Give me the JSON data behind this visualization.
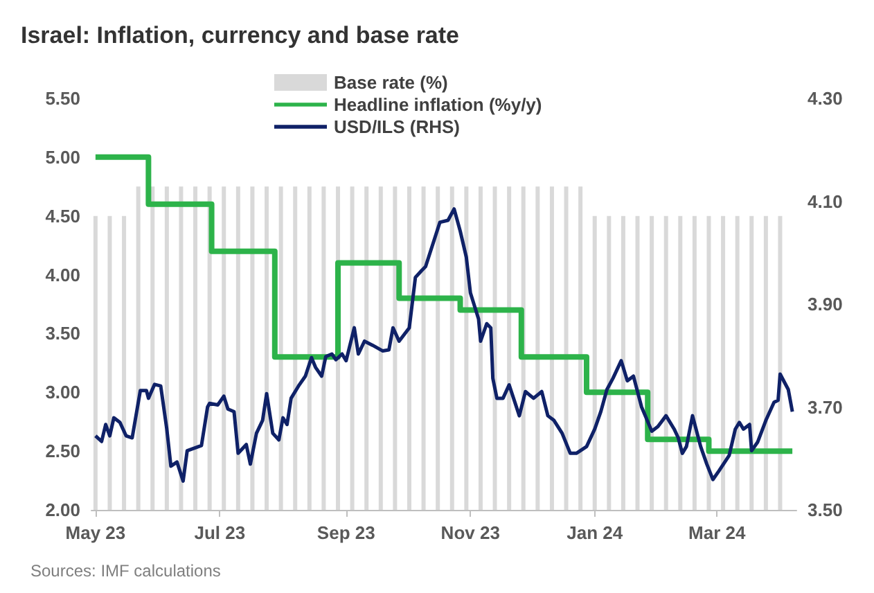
{
  "chart_data": {
    "type": "line",
    "title": "Israel: Inflation, currency and base rate",
    "annotations": [
      "Sources: IMF calculations"
    ],
    "xlim": [
      "2023-04-29",
      "2024-04-09"
    ],
    "xticks": [
      {
        "value": "2023-05-01",
        "label": "May 23"
      },
      {
        "value": "2023-07-01",
        "label": "Jul 23"
      },
      {
        "value": "2023-09-01",
        "label": "Sep 23"
      },
      {
        "value": "2023-11-01",
        "label": "Nov 23"
      },
      {
        "value": "2024-01-01",
        "label": "Jan 24"
      },
      {
        "value": "2024-03-01",
        "label": "Mar 24"
      }
    ],
    "ylim": [
      2,
      5.5
    ],
    "yticks": [
      {
        "value": 2,
        "label": "2.00"
      },
      {
        "value": 2.5,
        "label": "2.50"
      },
      {
        "value": 3,
        "label": "3.00"
      },
      {
        "value": 3.5,
        "label": "3.50"
      },
      {
        "value": 4,
        "label": "4.00"
      },
      {
        "value": 4.5,
        "label": "4.50"
      },
      {
        "value": 5,
        "label": "5.00"
      },
      {
        "value": 5.5,
        "label": "5.50"
      }
    ],
    "y2lim": [
      3.5,
      4.3
    ],
    "y2ticks": [
      {
        "value": 3.5,
        "label": "3.50"
      },
      {
        "value": 3.7,
        "label": "3.70"
      },
      {
        "value": 3.9,
        "label": "3.90"
      },
      {
        "value": 4.1,
        "label": "4.10"
      },
      {
        "value": 4.3,
        "label": "4.30"
      }
    ],
    "grid": false,
    "legend": "top",
    "marker": "none",
    "series": [
      {
        "name": "Base rate (%)",
        "type": "bar",
        "color": "#d9d9d9",
        "x": [
          "2023-05-01",
          "2023-05-08",
          "2023-05-15",
          "2023-05-22",
          "2023-05-29",
          "2023-06-05",
          "2023-06-12",
          "2023-06-19",
          "2023-06-26",
          "2023-07-03",
          "2023-07-10",
          "2023-07-17",
          "2023-07-24",
          "2023-07-31",
          "2023-08-07",
          "2023-08-14",
          "2023-08-21",
          "2023-08-28",
          "2023-09-04",
          "2023-09-11",
          "2023-09-18",
          "2023-09-25",
          "2023-10-02",
          "2023-10-09",
          "2023-10-16",
          "2023-10-23",
          "2023-10-30",
          "2023-11-06",
          "2023-11-13",
          "2023-11-20",
          "2023-11-27",
          "2023-12-04",
          "2023-12-11",
          "2023-12-18",
          "2023-12-25",
          "2024-01-01",
          "2024-01-08",
          "2024-01-15",
          "2024-01-22",
          "2024-01-29",
          "2024-02-05",
          "2024-02-12",
          "2024-02-19",
          "2024-02-26",
          "2024-03-04",
          "2024-03-11",
          "2024-03-18",
          "2024-03-25",
          "2024-04-01"
        ],
        "values": [
          4.5,
          4.5,
          4.5,
          4.75,
          4.75,
          4.75,
          4.75,
          4.75,
          4.75,
          4.75,
          4.75,
          4.75,
          4.75,
          4.75,
          4.75,
          4.75,
          4.75,
          4.75,
          4.75,
          4.75,
          4.75,
          4.75,
          4.75,
          4.75,
          4.75,
          4.75,
          4.75,
          4.75,
          4.75,
          4.75,
          4.75,
          4.75,
          4.75,
          4.75,
          4.75,
          4.5,
          4.5,
          4.5,
          4.5,
          4.5,
          4.5,
          4.5,
          4.5,
          4.5,
          4.5,
          4.5,
          4.5,
          4.5,
          4.5
        ]
      },
      {
        "name": "Headline inflation (%y/y)",
        "type": "step",
        "color": "#2db34a",
        "x": [
          "2023-05-01",
          "2023-05-27",
          "2023-06-27",
          "2023-07-28",
          "2023-08-28",
          "2023-09-27",
          "2023-10-27",
          "2023-11-26",
          "2023-12-28",
          "2024-01-27",
          "2024-02-26",
          "2024-04-07"
        ],
        "values": [
          5.0,
          4.6,
          4.2,
          3.3,
          4.1,
          3.8,
          3.7,
          3.3,
          3.0,
          2.6,
          2.5,
          2.5
        ]
      },
      {
        "name": "USD/ILS (RHS)",
        "axis": "y2",
        "color": "#0f2167",
        "x": [
          "2023-05-01",
          "2023-05-04",
          "2023-05-06",
          "2023-05-08",
          "2023-05-10",
          "2023-05-13",
          "2023-05-16",
          "2023-05-19",
          "2023-05-23",
          "2023-05-26",
          "2023-05-27",
          "2023-05-30",
          "2023-06-02",
          "2023-06-05",
          "2023-06-07",
          "2023-06-10",
          "2023-06-13",
          "2023-06-15",
          "2023-06-22",
          "2023-06-25",
          "2023-06-26",
          "2023-06-30",
          "2023-07-03",
          "2023-07-05",
          "2023-07-08",
          "2023-07-10",
          "2023-07-14",
          "2023-07-16",
          "2023-07-19",
          "2023-07-22",
          "2023-07-24",
          "2023-07-27",
          "2023-07-30",
          "2023-08-01",
          "2023-08-03",
          "2023-08-05",
          "2023-08-09",
          "2023-08-12",
          "2023-08-15",
          "2023-08-17",
          "2023-08-20",
          "2023-08-22",
          "2023-08-25",
          "2023-08-27",
          "2023-08-30",
          "2023-09-01",
          "2023-09-05",
          "2023-09-07",
          "2023-09-10",
          "2023-09-14",
          "2023-09-19",
          "2023-09-22",
          "2023-09-24",
          "2023-09-27",
          "2023-10-02",
          "2023-10-05",
          "2023-10-08",
          "2023-10-10",
          "2023-10-17",
          "2023-10-21",
          "2023-10-24",
          "2023-10-27",
          "2023-10-30",
          "2023-11-01",
          "2023-11-05",
          "2023-11-06",
          "2023-11-09",
          "2023-11-11",
          "2023-11-12",
          "2023-11-14",
          "2023-11-17",
          "2023-11-20",
          "2023-11-25",
          "2023-11-28",
          "2023-12-02",
          "2023-12-06",
          "2023-12-09",
          "2023-12-12",
          "2023-12-16",
          "2023-12-20",
          "2023-12-23",
          "2023-12-28",
          "2024-01-01",
          "2024-01-04",
          "2024-01-07",
          "2024-01-10",
          "2024-01-14",
          "2024-01-17",
          "2024-01-20",
          "2024-01-24",
          "2024-01-29",
          "2024-02-01",
          "2024-02-05",
          "2024-02-09",
          "2024-02-11",
          "2024-02-13",
          "2024-02-15",
          "2024-02-18",
          "2024-02-22",
          "2024-02-25",
          "2024-02-28",
          "2024-03-02",
          "2024-03-07",
          "2024-03-10",
          "2024-03-12",
          "2024-03-14",
          "2024-03-17",
          "2024-03-18",
          "2024-03-21",
          "2024-03-25",
          "2024-03-29",
          "2024-03-31",
          "2024-04-01",
          "2024-04-05",
          "2024-04-07"
        ],
        "values": [
          3.644,
          3.633,
          3.666,
          3.644,
          3.679,
          3.67,
          3.644,
          3.64,
          3.732,
          3.732,
          3.717,
          3.744,
          3.741,
          3.657,
          3.585,
          3.593,
          3.556,
          3.615,
          3.625,
          3.7,
          3.707,
          3.704,
          3.721,
          3.696,
          3.691,
          3.61,
          3.627,
          3.589,
          3.649,
          3.674,
          3.726,
          3.649,
          3.636,
          3.679,
          3.666,
          3.717,
          3.743,
          3.76,
          3.796,
          3.777,
          3.76,
          3.798,
          3.803,
          3.792,
          3.803,
          3.79,
          3.854,
          3.803,
          3.828,
          3.82,
          3.809,
          3.811,
          3.854,
          3.828,
          3.854,
          3.952,
          3.965,
          3.973,
          4.059,
          4.063,
          4.085,
          4.042,
          3.991,
          3.922,
          3.871,
          3.828,
          3.862,
          3.854,
          3.756,
          3.717,
          3.717,
          3.743,
          3.683,
          3.73,
          3.717,
          3.73,
          3.683,
          3.674,
          3.649,
          3.61,
          3.61,
          3.623,
          3.657,
          3.691,
          3.734,
          3.756,
          3.79,
          3.751,
          3.76,
          3.7,
          3.653,
          3.662,
          3.683,
          3.657,
          3.64,
          3.61,
          3.623,
          3.683,
          3.623,
          3.589,
          3.559,
          3.576,
          3.606,
          3.657,
          3.67,
          3.657,
          3.666,
          3.615,
          3.632,
          3.674,
          3.709,
          3.713,
          3.764,
          3.734,
          3.691
        ]
      }
    ]
  }
}
